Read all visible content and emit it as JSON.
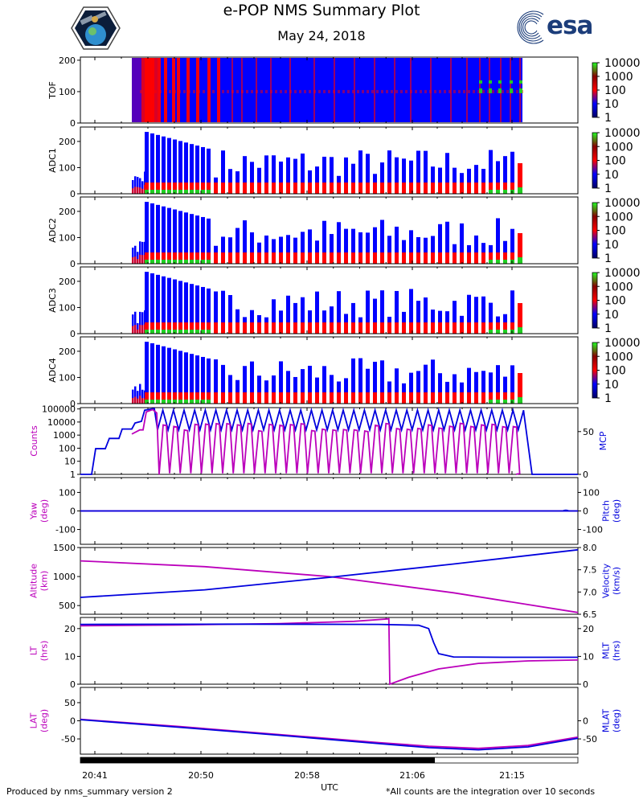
{
  "header": {
    "title": "e-POP NMS Summary Plot",
    "date": "May 24, 2018",
    "esa_logo_text": "esa"
  },
  "footer": {
    "left": "Produced by nms_summary version 2",
    "right": "*All counts are the integration over 10 seconds"
  },
  "colors": {
    "magenta": "#bb00bb",
    "blue": "#0000dd",
    "spectrogram_low": "#0000ff",
    "spectrogram_mid": "#ff0000",
    "spectrogram_high": "#22cc22"
  },
  "chart_data": [
    {
      "type": "heatmap",
      "ylabel": "TOF",
      "ylim": [
        0,
        210
      ],
      "yticks": [
        "0",
        "100",
        "200"
      ],
      "colorbar_ticks": [
        "1",
        "10",
        "100",
        "1000",
        "10000"
      ],
      "data_x_range": [
        "20:44",
        "21:17"
      ],
      "lines_y": [
        100,
        60
      ]
    },
    {
      "type": "heatmap",
      "ylabel": "ADC1",
      "ylim": [
        0,
        255
      ],
      "yticks": [
        "0",
        "100",
        "200"
      ],
      "colorbar_ticks": [
        "1",
        "10",
        "100",
        "1000",
        "10000"
      ],
      "data_x_range": [
        "20:44",
        "21:17"
      ]
    },
    {
      "type": "heatmap",
      "ylabel": "ADC2",
      "ylim": [
        0,
        255
      ],
      "yticks": [
        "0",
        "100",
        "200"
      ],
      "colorbar_ticks": [
        "1",
        "10",
        "100",
        "1000",
        "10000"
      ],
      "data_x_range": [
        "20:44",
        "21:17"
      ]
    },
    {
      "type": "heatmap",
      "ylabel": "ADC3",
      "ylim": [
        0,
        255
      ],
      "yticks": [
        "0",
        "100",
        "200"
      ],
      "colorbar_ticks": [
        "1",
        "10",
        "100",
        "1000",
        "10000"
      ],
      "data_x_range": [
        "20:44",
        "21:17"
      ]
    },
    {
      "type": "heatmap",
      "ylabel": "ADC4",
      "ylim": [
        0,
        255
      ],
      "yticks": [
        "0",
        "100",
        "200"
      ],
      "colorbar_ticks": [
        "1",
        "10",
        "100",
        "1000",
        "10000"
      ],
      "data_x_range": [
        "20:44",
        "21:17"
      ]
    },
    {
      "type": "line",
      "ylabel_left": "Counts",
      "ylabel_right": "MCP",
      "yscale_left": "log",
      "yticks_left": [
        "1",
        "10",
        "100",
        "1000",
        "10000",
        "100000"
      ],
      "yticks_right": [
        "0",
        "50"
      ],
      "series": [
        {
          "name": "Counts",
          "color": "magenta",
          "description": "oscillating counts, 20:44 to 21:15, peaks near 10000-50000"
        },
        {
          "name": "MCP",
          "color": "blue",
          "description": "stepped ramp 20:40-20:45 then oscillating 50-75 until 21:16, then 0"
        }
      ]
    },
    {
      "type": "line",
      "ylabel_left": "Yaw\n(deg)",
      "ylabel_right": "Pitch\n(deg)",
      "ylim": [
        -180,
        180
      ],
      "yticks_left": [
        "-100",
        "0",
        "100"
      ],
      "yticks_right": [
        "-100",
        "0",
        "100"
      ],
      "series": [
        {
          "name": "Yaw",
          "color": "magenta",
          "x": [
            0,
            1
          ],
          "y": [
            0,
            0
          ]
        },
        {
          "name": "Pitch",
          "color": "blue",
          "x": [
            0,
            1
          ],
          "y": [
            0,
            0
          ]
        }
      ]
    },
    {
      "type": "line",
      "ylabel_left": "Altitude\n(km)",
      "ylabel_right": "Velocity\n(km/s)",
      "ylim_left": [
        350,
        1500
      ],
      "ylim_right": [
        6.5,
        8.0
      ],
      "yticks_left": [
        "500",
        "1000",
        "1500"
      ],
      "yticks_right": [
        "6.5",
        "7.0",
        "7.5",
        "8.0"
      ],
      "series": [
        {
          "name": "Altitude",
          "color": "magenta",
          "x": [
            0,
            0.25,
            0.5,
            0.75,
            1.0
          ],
          "y": [
            1270,
            1170,
            1000,
            720,
            380
          ]
        },
        {
          "name": "Velocity",
          "color": "blue",
          "x": [
            0,
            0.25,
            0.5,
            0.75,
            1.0
          ],
          "y": [
            6.88,
            7.05,
            7.33,
            7.63,
            7.95
          ]
        }
      ]
    },
    {
      "type": "line",
      "ylabel_left": "LT\n(hrs)",
      "ylabel_right": "MLT\n(hrs)",
      "ylim": [
        0,
        24
      ],
      "yticks_left": [
        "0",
        "10",
        "20"
      ],
      "yticks_right": [
        "0",
        "10",
        "20"
      ],
      "series": [
        {
          "name": "LT",
          "color": "magenta",
          "x": [
            0,
            0.2,
            0.4,
            0.55,
            0.62,
            0.622,
            0.66,
            0.72,
            0.8,
            0.9,
            1.0
          ],
          "y": [
            21,
            21.3,
            21.8,
            22.6,
            23.5,
            0,
            2.5,
            5.5,
            7.5,
            8.4,
            8.7
          ]
        },
        {
          "name": "MLT",
          "color": "blue",
          "x": [
            0,
            0.3,
            0.6,
            0.68,
            0.7,
            0.71,
            0.72,
            0.75,
            0.85,
            1.0
          ],
          "y": [
            21.5,
            21.6,
            21.5,
            21.2,
            20,
            15,
            11,
            9.8,
            9.7,
            9.7
          ]
        }
      ]
    },
    {
      "type": "line",
      "ylabel_left": "LAT\n(deg)",
      "ylabel_right": "MLAT\n(deg)",
      "ylim": [
        -92,
        92
      ],
      "yticks_left": [
        "-50",
        "0",
        "50"
      ],
      "yticks_right": [
        "-50",
        "0"
      ],
      "series": [
        {
          "name": "LAT",
          "color": "magenta",
          "x": [
            0,
            0.2,
            0.4,
            0.6,
            0.7,
            0.8,
            0.9,
            1.0
          ],
          "y": [
            4,
            -16,
            -38,
            -60,
            -70,
            -76,
            -68,
            -45
          ]
        },
        {
          "name": "MLAT",
          "color": "blue",
          "x": [
            0,
            0.2,
            0.4,
            0.6,
            0.7,
            0.8,
            0.9,
            1.0
          ],
          "y": [
            3,
            -18,
            -40,
            -63,
            -74,
            -80,
            -72,
            -48
          ]
        }
      ],
      "xlabel": "UTC",
      "xticks": [
        "20:41",
        "20:50",
        "20:58",
        "21:06",
        "21:15"
      ]
    }
  ]
}
